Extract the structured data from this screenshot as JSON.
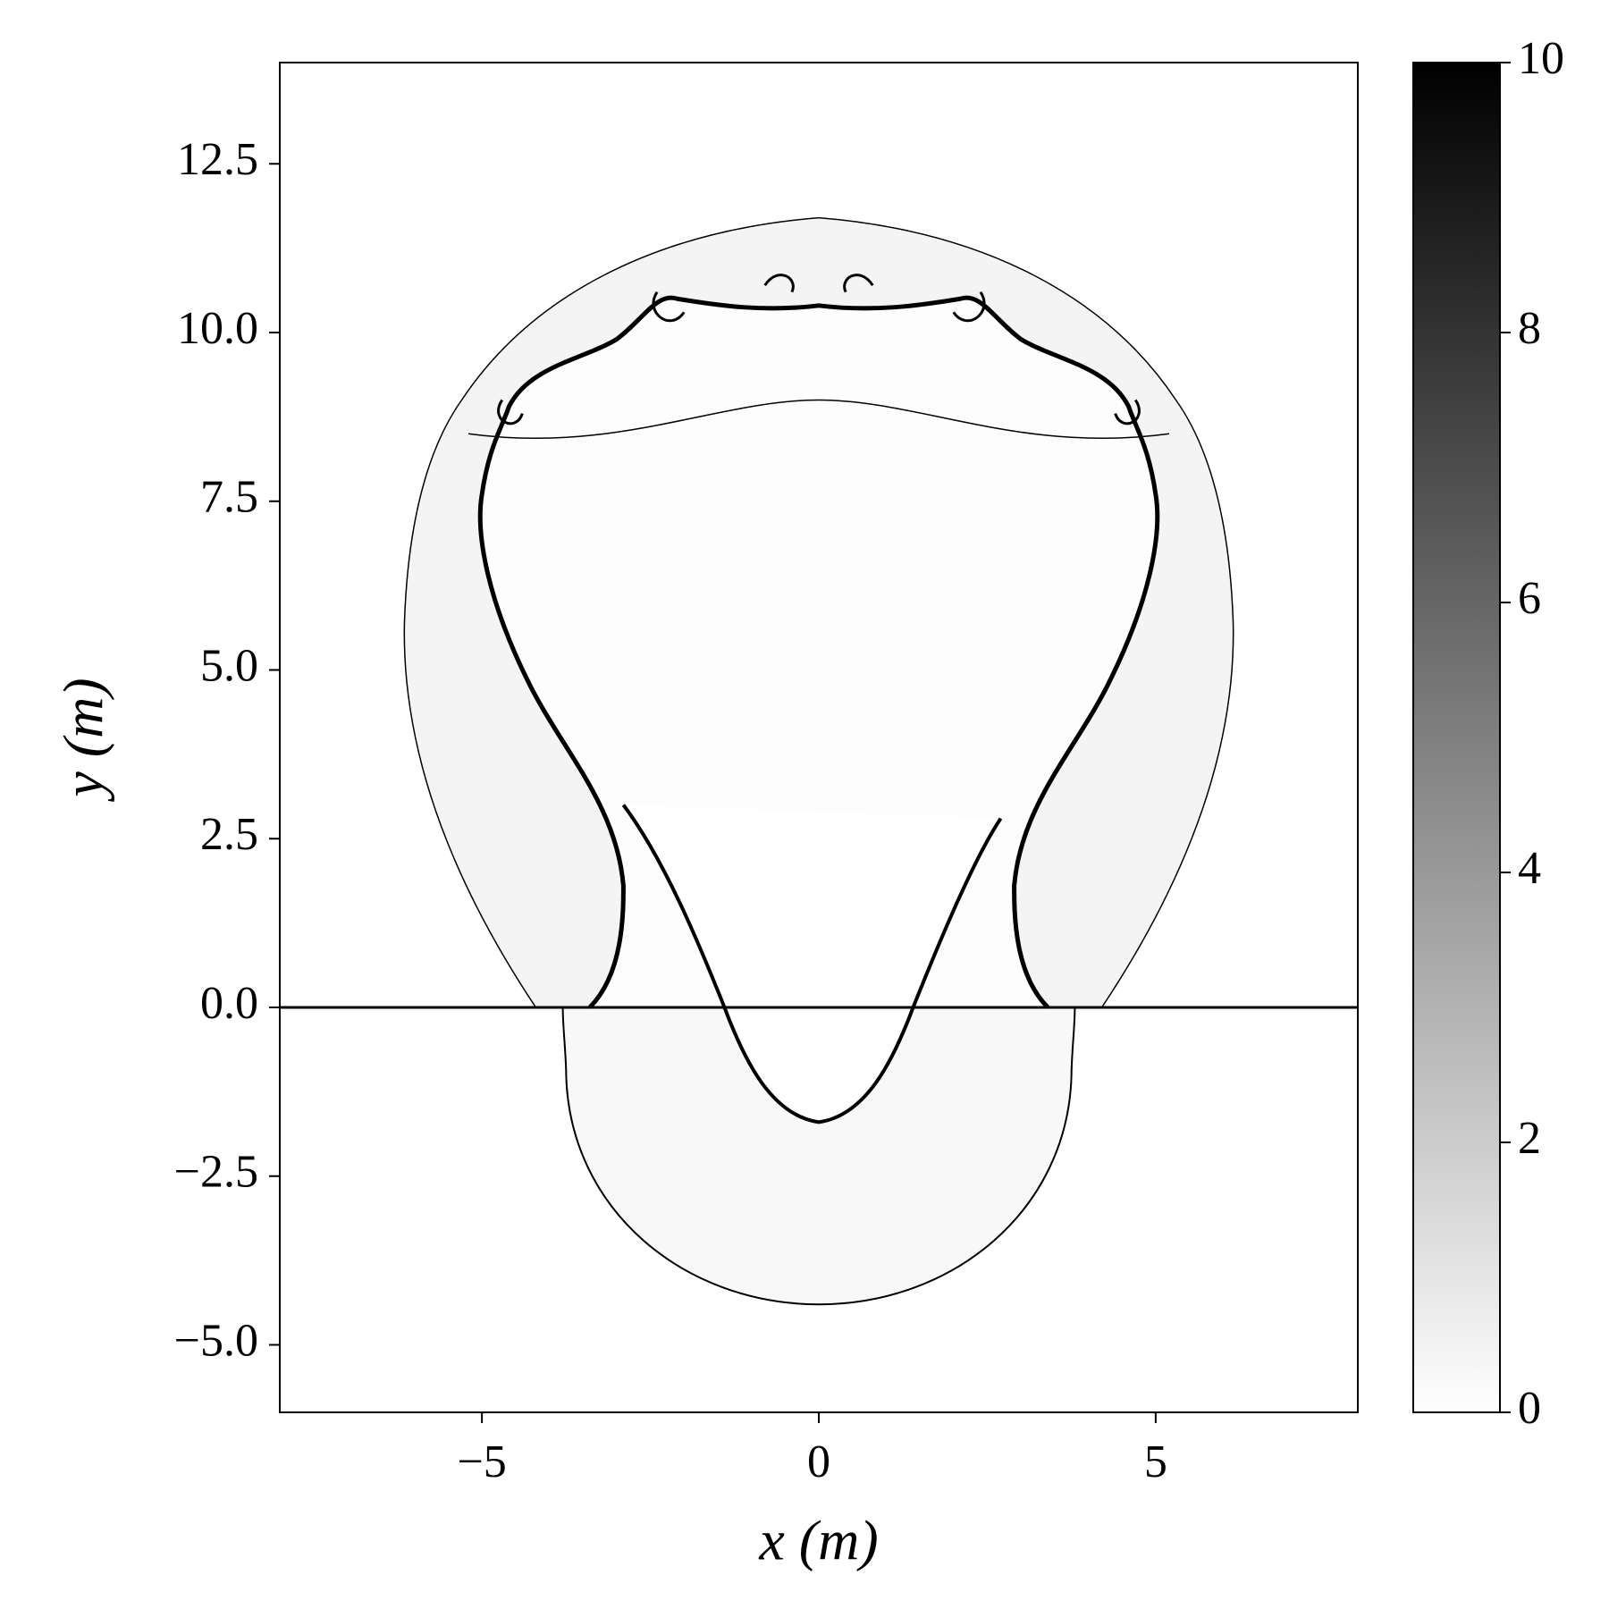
{
  "chart_data": {
    "type": "image",
    "xlabel": "x (m)",
    "ylabel": "y (m)",
    "xlim": [
      -8,
      8
    ],
    "ylim": [
      -6,
      14
    ],
    "xticks": [
      {
        "value": -5,
        "label": "−5"
      },
      0,
      5
    ],
    "yticks": [
      {
        "value": -5,
        "label": "−5.0"
      },
      {
        "value": -2.5,
        "label": "−2.5"
      },
      {
        "value": 0,
        "label": "0.0"
      },
      2.5,
      {
        "value": 5,
        "label": "5.0"
      },
      7.5,
      {
        "value": 10,
        "label": "10.0"
      },
      12.5
    ],
    "colormap": "gray_r",
    "clim": [
      0,
      10
    ],
    "cticks": [
      0,
      2,
      4,
      6,
      8,
      10
    ]
  }
}
